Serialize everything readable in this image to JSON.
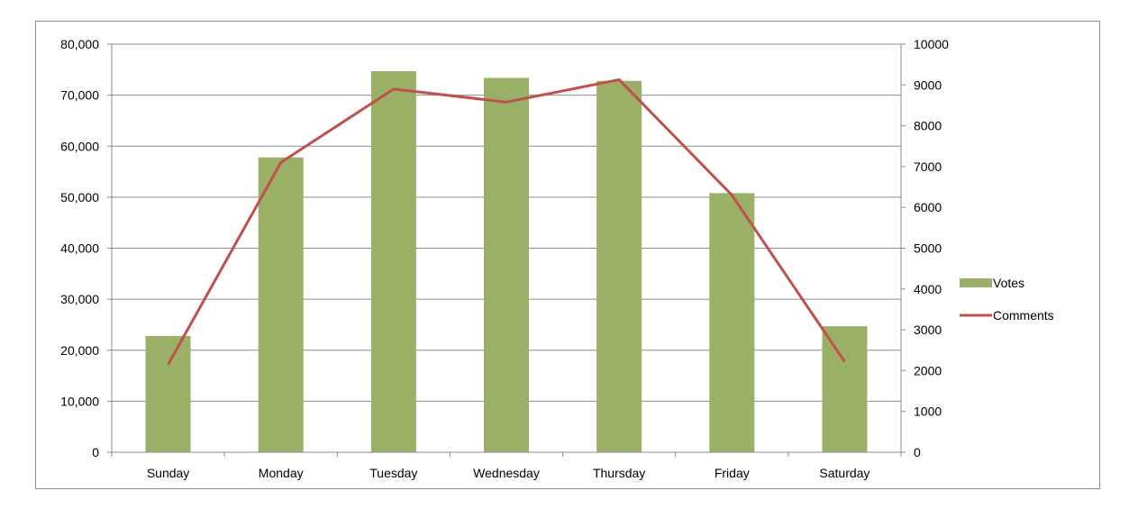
{
  "chart_data": {
    "type": "bar",
    "categories": [
      "Sunday",
      "Monday",
      "Tuesday",
      "Wednesday",
      "Thursday",
      "Friday",
      "Saturday"
    ],
    "series": [
      {
        "name": "Votes",
        "type": "bar",
        "axis": "left",
        "color": "#9BB067",
        "values": [
          22800,
          57800,
          74700,
          73400,
          72800,
          50800,
          24700
        ]
      },
      {
        "name": "Comments",
        "type": "line",
        "axis": "right",
        "color": "#C0504D",
        "values": [
          2150,
          7100,
          8900,
          8580,
          9130,
          6300,
          2220
        ]
      }
    ],
    "y_left": {
      "min": 0,
      "max": 80000,
      "ticks": [
        0,
        10000,
        20000,
        30000,
        40000,
        50000,
        60000,
        70000,
        80000
      ],
      "tick_labels": [
        "0",
        "10,000",
        "20,000",
        "30,000",
        "40,000",
        "50,000",
        "60,000",
        "70,000",
        "80,000"
      ]
    },
    "y_right": {
      "min": 0,
      "max": 10000,
      "ticks": [
        0,
        1000,
        2000,
        3000,
        4000,
        5000,
        6000,
        7000,
        8000,
        9000,
        10000
      ],
      "tick_labels": [
        "0",
        "1000",
        "2000",
        "3000",
        "4000",
        "5000",
        "6000",
        "7000",
        "8000",
        "9000",
        "10000"
      ]
    },
    "grid": true,
    "legend_position": "right",
    "title": "",
    "xlabel": "",
    "ylabel": ""
  }
}
